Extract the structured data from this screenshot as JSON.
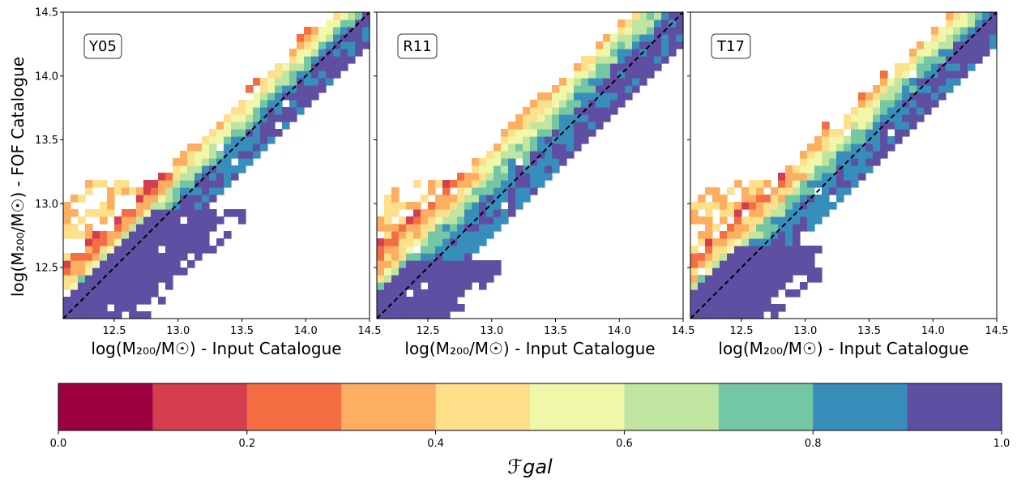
{
  "figure": {
    "ylabel": "log(M₂₀₀/M☉) - FOF Catalogue",
    "colorbar_label": "ℱgal"
  },
  "chart_data": [
    {
      "type": "heatmap",
      "panel_label": "Y05",
      "xlabel": "log(M₂₀₀/M☉) - Input Catalogue",
      "xlim": [
        12.1,
        14.5
      ],
      "ylim": [
        12.1,
        14.5
      ],
      "xticks": [
        "12.5",
        "13.0",
        "13.5",
        "14.0",
        "14.5"
      ],
      "yticks": [
        "12.5",
        "13.0",
        "13.5",
        "14.0",
        "14.5"
      ],
      "one_to_one_line": true,
      "lower_cutoff": 12.95,
      "spread": 0.13,
      "offset": 0.0
    },
    {
      "type": "heatmap",
      "panel_label": "R11",
      "xlabel": "log(M₂₀₀/M☉) - Input Catalogue",
      "xlim": [
        12.1,
        14.5
      ],
      "ylim": [
        12.1,
        14.5
      ],
      "xticks": [
        "12.5",
        "13.0",
        "13.5",
        "14.0",
        "14.5"
      ],
      "yticks": [],
      "one_to_one_line": true,
      "lower_cutoff": 12.55,
      "spread": 0.17,
      "offset": 0.05
    },
    {
      "type": "heatmap",
      "panel_label": "T17",
      "xlabel": "log(M₂₀₀/M☉) - Input Catalogue",
      "xlim": [
        12.1,
        14.5
      ],
      "ylim": [
        12.1,
        14.5
      ],
      "xticks": [
        "12.5",
        "13.0",
        "13.5",
        "14.0",
        "14.5"
      ],
      "yticks": [],
      "one_to_one_line": true,
      "lower_cutoff": 12.7,
      "spread": 0.15,
      "offset": 0.02
    }
  ],
  "colorbar": {
    "range": [
      0.0,
      1.0
    ],
    "ticks": [
      "0.0",
      "0.2",
      "0.4",
      "0.6",
      "0.8",
      "1.0"
    ],
    "colors": [
      "#9e0142",
      "#d53e4f",
      "#f46d43",
      "#fdae61",
      "#fee08b",
      "#f1f7a9",
      "#bfe5a0",
      "#74c7a5",
      "#378ebb",
      "#5e4fa2"
    ]
  }
}
